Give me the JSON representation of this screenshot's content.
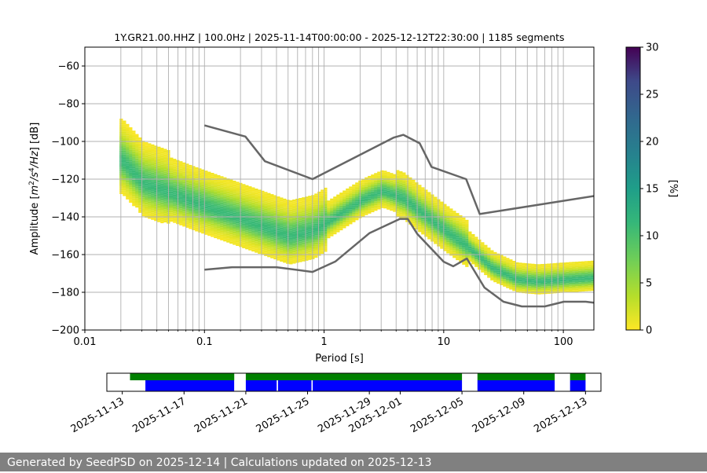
{
  "chart_data": [
    {
      "type": "heatmap",
      "title": "1Y.GR21.00.HHZ | 100.0Hz | 2025-11-14T00:00:00 - 2025-12-12T22:30:00 | 1185 segments",
      "xlabel": "Period [s]",
      "ylabel": "Amplitude [m²/s⁴/Hz] [dB]",
      "x_scale": "log",
      "xlim": [
        0.01,
        180
      ],
      "ylim": [
        -200,
        -50
      ],
      "x_ticks": [
        "0.01",
        "0.1",
        "1",
        "10",
        "100"
      ],
      "y_ticks": [
        -60,
        -80,
        -100,
        -120,
        -140,
        -160,
        -180,
        -200
      ],
      "grid": true,
      "colormap": "viridis_r",
      "colorbar": {
        "label": "[%]",
        "range": [
          0,
          30
        ],
        "ticks": [
          0,
          5,
          10,
          15,
          20,
          25,
          30
        ]
      },
      "mode_curve": {
        "period": [
          0.02,
          0.03,
          0.05,
          0.08,
          0.12,
          0.2,
          0.3,
          0.5,
          0.8,
          1.2,
          2.0,
          3.0,
          4.5,
          6.5,
          10,
          15,
          25,
          40,
          60,
          100,
          180
        ],
        "db": [
          -110,
          -122,
          -127,
          -132,
          -136,
          -141,
          -145,
          -150,
          -147,
          -140,
          -131,
          -126,
          -130,
          -138,
          -147,
          -155,
          -167,
          -173,
          -174,
          -173,
          -172
        ]
      },
      "noise_models": [
        {
          "name": "high",
          "period": [
            0.1,
            0.22,
            0.32,
            0.8,
            3.8,
            4.6,
            6.3,
            7.9,
            15.4,
            20,
            354.8
          ],
          "db": [
            -91.5,
            -97.4,
            -110.5,
            -120,
            -98,
            -96.5,
            -101,
            -113.5,
            -120,
            -138.5,
            -126
          ]
        },
        {
          "name": "low",
          "period": [
            0.1,
            0.17,
            0.4,
            0.8,
            1.24,
            2.4,
            4.3,
            5.0,
            6.0,
            10.0,
            12.0,
            15.6,
            21.9,
            31.6,
            45,
            70,
            101,
            154,
            328
          ],
          "db": [
            -168,
            -166.7,
            -166.7,
            -169.2,
            -163.7,
            -148.6,
            -141.1,
            -141.1,
            -149,
            -163.8,
            -166.2,
            -162.1,
            -177.5,
            -185,
            -187.5,
            -187.5,
            -185,
            -185,
            -187.5
          ]
        }
      ]
    },
    {
      "type": "timeline",
      "x_type": "date",
      "xlim": [
        "2025-11-12T00:00:00",
        "2025-12-14T00:00:00"
      ],
      "tick_labels": [
        "2025-11-13",
        "2025-11-17",
        "2025-11-21",
        "2025-11-25",
        "2025-11-29",
        "2025-12-01",
        "2025-12-05",
        "2025-12-09",
        "2025-12-13"
      ],
      "tick_dates": [
        "2025-11-13",
        "2025-11-17",
        "2025-11-21",
        "2025-11-25",
        "2025-11-29",
        "2025-12-01",
        "2025-12-05",
        "2025-12-09",
        "2025-12-13"
      ],
      "series": [
        {
          "color": "#008000",
          "intervals": [
            [
              "2025-11-13T12:00",
              "2025-11-20T06:00"
            ],
            [
              "2025-11-21T00:00",
              "2025-12-05T00:00"
            ],
            [
              "2025-12-06T00:00",
              "2025-12-11T00:00"
            ],
            [
              "2025-12-12T00:00",
              "2025-12-13T00:00"
            ]
          ]
        },
        {
          "color": "#0000ff",
          "intervals": [
            [
              "2025-11-14T12:00",
              "2025-11-20T06:00"
            ],
            [
              "2025-11-21T00:00",
              "2025-11-23T00:00"
            ],
            [
              "2025-11-23T02:00",
              "2025-11-25T06:00"
            ],
            [
              "2025-11-25T08:00",
              "2025-12-05T00:00"
            ],
            [
              "2025-12-06T00:00",
              "2025-12-11T00:00"
            ],
            [
              "2025-12-12T00:00",
              "2025-12-13T00:00"
            ]
          ]
        }
      ]
    }
  ],
  "footer": {
    "text": "Generated by SeedPSD on 2025-12-14 | Calculations updated on 2025-12-13"
  }
}
